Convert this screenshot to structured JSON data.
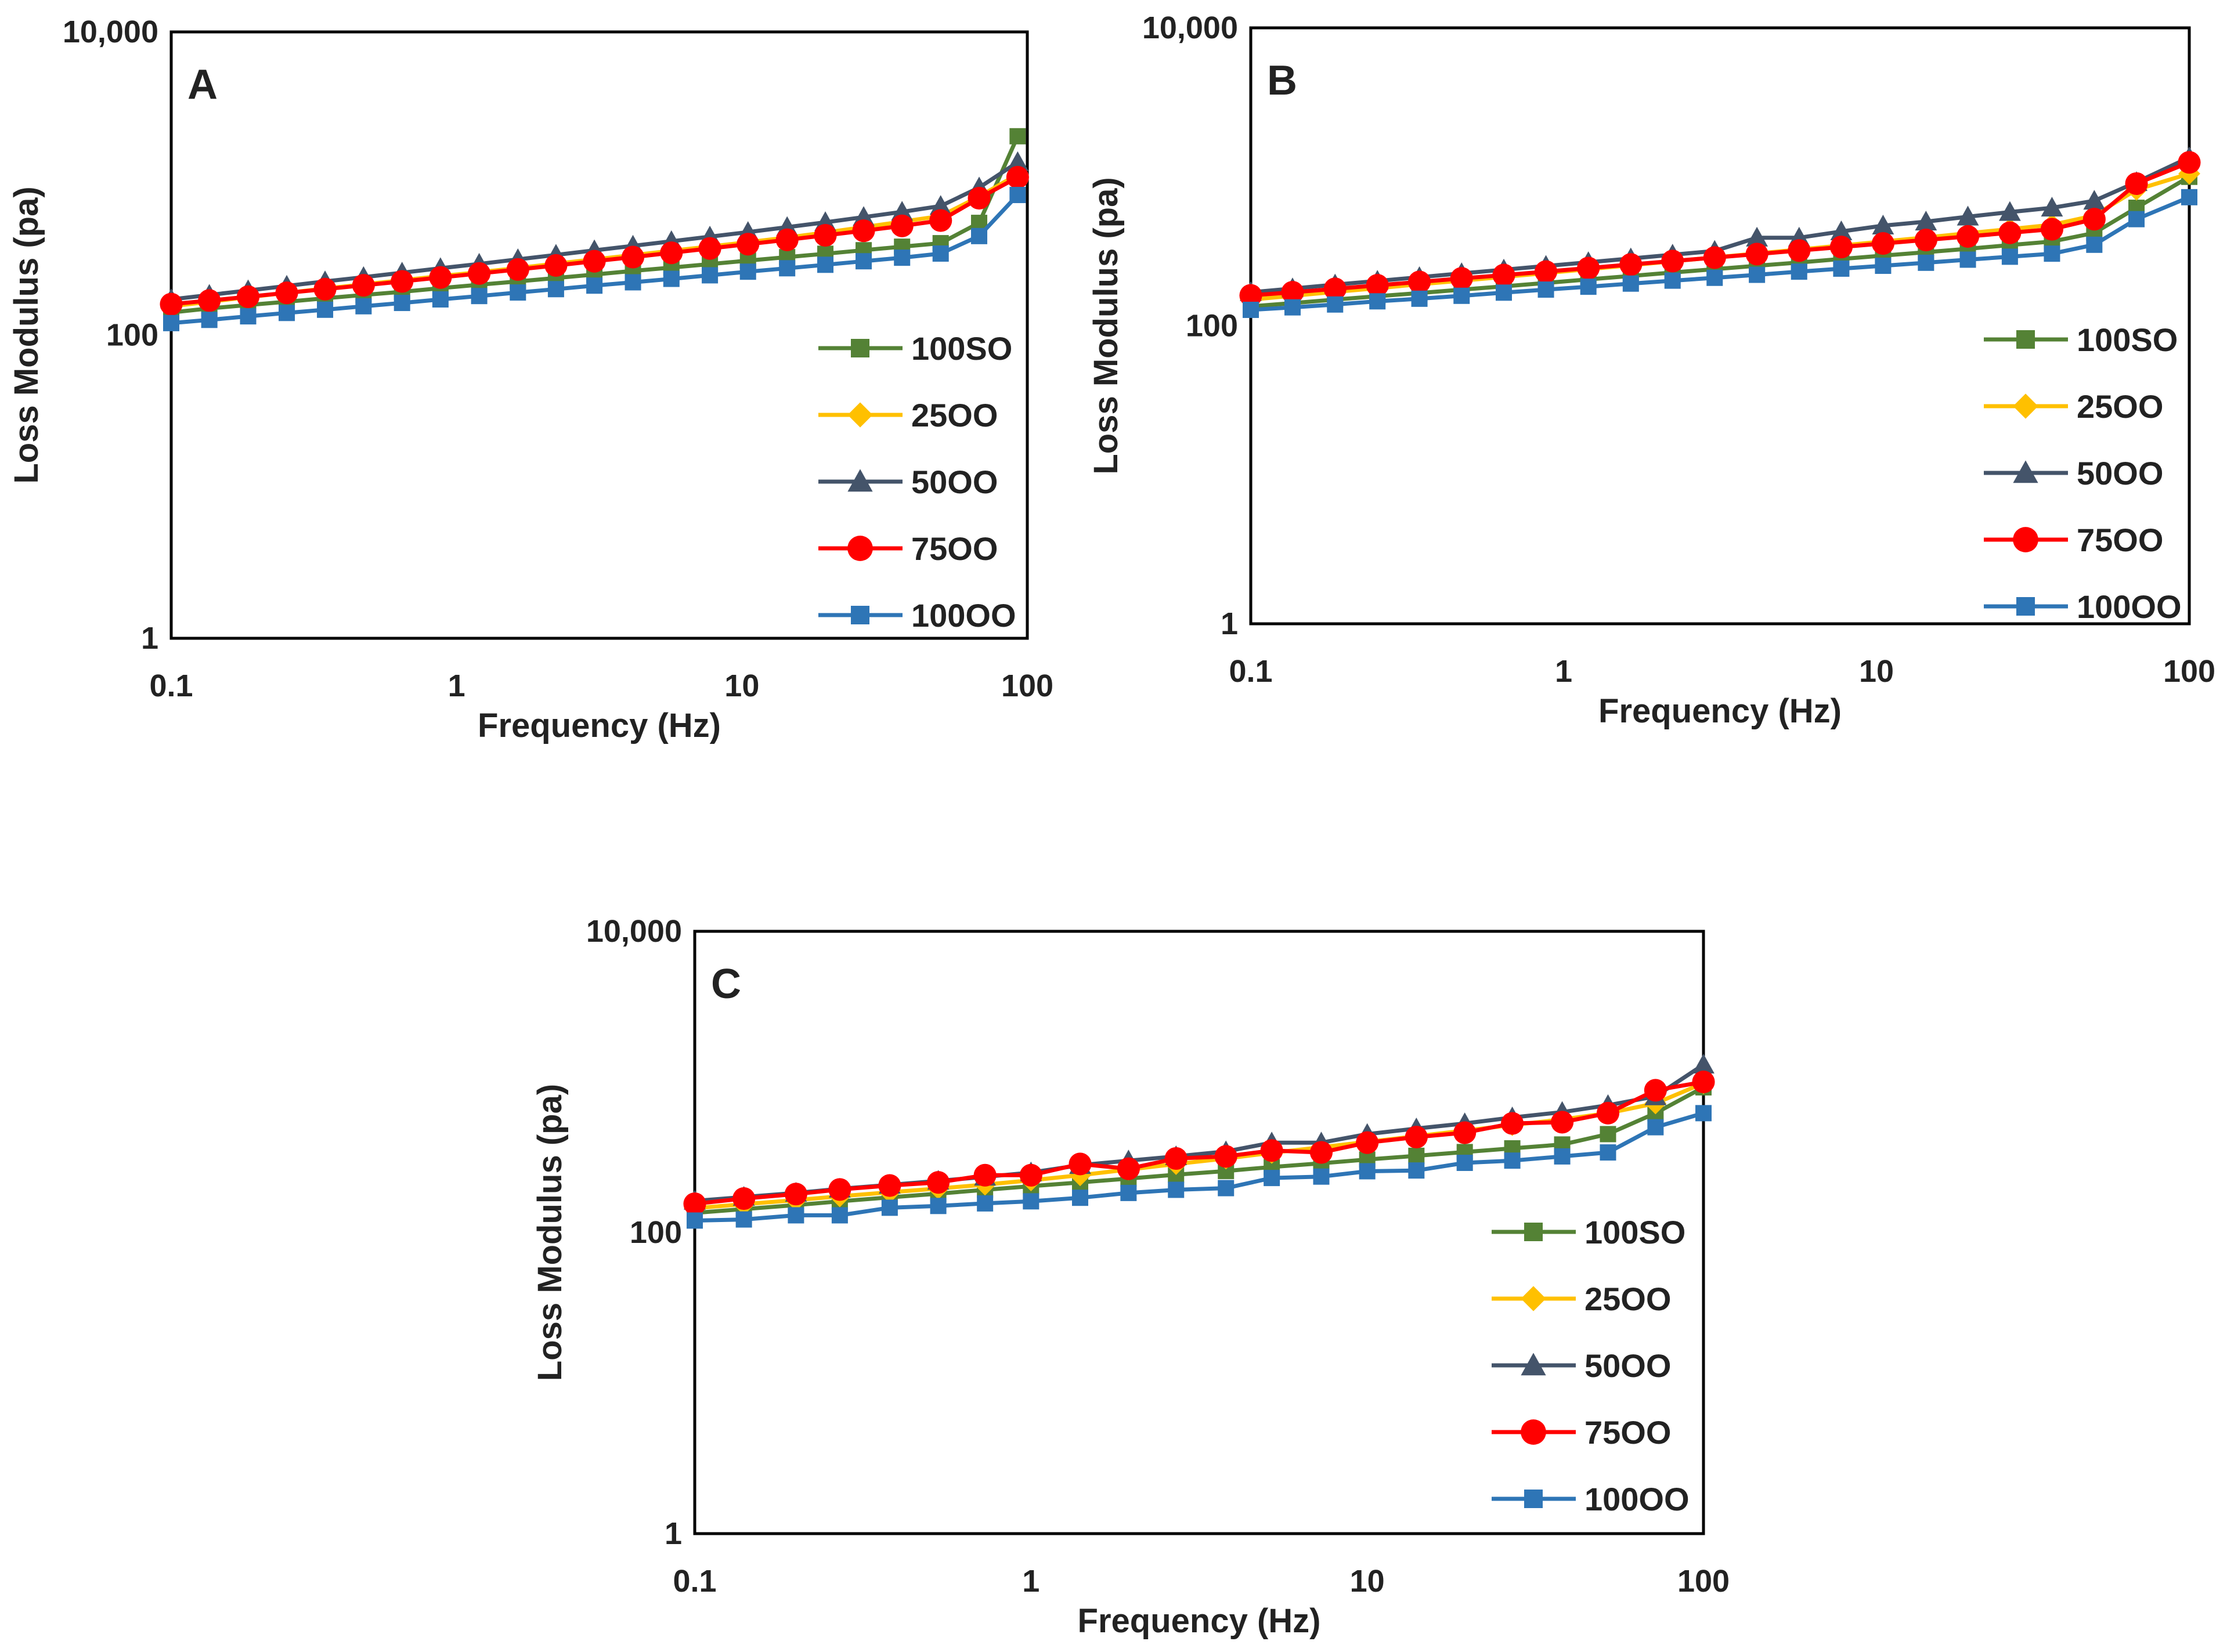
{
  "chart_data": [
    {
      "type": "line",
      "panel_label": "A",
      "title": "",
      "xlabel": "Frequency (Hz)",
      "ylabel": "Loss Modulus (pa)",
      "xscale": "log",
      "yscale": "log",
      "xlim": [
        0.1,
        100
      ],
      "ylim": [
        1,
        10000
      ],
      "x_ticks": [
        {
          "value": 0.1,
          "label": "0.1"
        },
        {
          "value": 1,
          "label": "1"
        },
        {
          "value": 10,
          "label": "10"
        },
        {
          "value": 100,
          "label": "100"
        }
      ],
      "y_ticks": [
        {
          "value": 1,
          "label": "1"
        },
        {
          "value": 100,
          "label": "100"
        },
        {
          "value": 10000,
          "label": "10,000"
        }
      ],
      "legend_position": "bottom-right",
      "x": [
        0.1,
        0.136,
        0.186,
        0.254,
        0.346,
        0.472,
        0.644,
        0.878,
        1.2,
        1.64,
        2.23,
        3.04,
        4.15,
        5.66,
        7.72,
        10.5,
        14.4,
        19.6,
        26.7,
        36.4,
        49.7,
        67.8,
        92.5
      ],
      "series": [
        {
          "name": "100SO",
          "color": "#548235",
          "marker": "square",
          "values": [
            141,
            150,
            158,
            166,
            175,
            184,
            193,
            204,
            215,
            226,
            238,
            251,
            265,
            279,
            294,
            310,
            327,
            344,
            363,
            383,
            404,
            550,
            2050
          ]
        },
        {
          "name": "25OO",
          "color": "#FFC000",
          "marker": "diamond",
          "values": [
            155,
            166,
            178,
            190,
            203,
            216,
            230,
            245,
            260,
            277,
            296,
            316,
            337,
            360,
            384,
            410,
            440,
            475,
            515,
            560,
            610,
            820,
            1150
          ]
        },
        {
          "name": "50OO",
          "color": "#44546A",
          "marker": "triangle",
          "values": [
            172,
            184,
            197,
            211,
            226,
            241,
            258,
            276,
            295,
            316,
            338,
            362,
            388,
            416,
            446,
            478,
            515,
            555,
            600,
            650,
            710,
            940,
            1380
          ]
        },
        {
          "name": "75OO",
          "color": "#FF0000",
          "marker": "circle",
          "values": [
            160,
            169,
            179,
            190,
            201,
            213,
            226,
            240,
            255,
            271,
            288,
            307,
            327,
            349,
            373,
            398,
            425,
            455,
            488,
            525,
            570,
            800,
            1100
          ]
        },
        {
          "name": "100OO",
          "color": "#2E75B6",
          "marker": "square",
          "values": [
            120,
            126,
            133,
            140,
            147,
            155,
            163,
            172,
            181,
            191,
            201,
            212,
            223,
            235,
            248,
            262,
            276,
            291,
            307,
            324,
            345,
            450,
            840
          ]
        }
      ]
    },
    {
      "type": "line",
      "panel_label": "B",
      "title": "",
      "xlabel": "Frequency (Hz)",
      "ylabel": "Loss Modulus (pa)",
      "xscale": "log",
      "yscale": "log",
      "xlim": [
        0.1,
        100
      ],
      "ylim": [
        1,
        10000
      ],
      "x_ticks": [
        {
          "value": 0.1,
          "label": "0.1"
        },
        {
          "value": 1,
          "label": "1"
        },
        {
          "value": 10,
          "label": "10"
        },
        {
          "value": 100,
          "label": "100"
        }
      ],
      "y_ticks": [
        {
          "value": 1,
          "label": "1"
        },
        {
          "value": 100,
          "label": "100"
        },
        {
          "value": 10000,
          "label": "10,000"
        }
      ],
      "legend_position": "bottom-right",
      "x": [
        0.1,
        0.136,
        0.186,
        0.254,
        0.346,
        0.472,
        0.644,
        0.878,
        1.2,
        1.64,
        2.23,
        3.04,
        4.15,
        5.66,
        7.72,
        10.5,
        14.4,
        19.6,
        26.7,
        36.4,
        49.7,
        67.8,
        100
      ],
      "series": [
        {
          "name": "100SO",
          "color": "#548235",
          "marker": "square",
          "values": [
            135,
            142,
            150,
            158,
            166,
            175,
            184,
            194,
            205,
            216,
            228,
            240,
            253,
            266,
            281,
            296,
            312,
            329,
            348,
            368,
            420,
            620,
            1000
          ]
        },
        {
          "name": "25OO",
          "color": "#FFC000",
          "marker": "diamond",
          "values": [
            150,
            159,
            169,
            179,
            190,
            201,
            213,
            226,
            240,
            255,
            271,
            288,
            306,
            325,
            346,
            368,
            392,
            418,
            446,
            476,
            550,
            820,
            1050
          ]
        },
        {
          "name": "50OO",
          "color": "#44546A",
          "marker": "triangle",
          "values": [
            168,
            178,
            189,
            200,
            212,
            225,
            238,
            252,
            267,
            283,
            300,
            318,
            390,
            390,
            430,
            470,
            500,
            540,
            580,
            620,
            690,
            920,
            1350
          ]
        },
        {
          "name": "75OO",
          "color": "#FF0000",
          "marker": "circle",
          "values": [
            160,
            168,
            177,
            187,
            197,
            208,
            219,
            231,
            244,
            258,
            272,
            287,
            303,
            320,
            338,
            357,
            377,
            398,
            421,
            445,
            520,
            900,
            1250
          ]
        },
        {
          "name": "100OO",
          "color": "#2E75B6",
          "marker": "square",
          "values": [
            128,
            133,
            139,
            146,
            152,
            159,
            167,
            175,
            183,
            192,
            201,
            210,
            220,
            231,
            242,
            253,
            265,
            278,
            291,
            305,
            350,
            520,
            730
          ]
        }
      ]
    },
    {
      "type": "line",
      "panel_label": "C",
      "title": "",
      "xlabel": "Frequency (Hz)",
      "ylabel": "Loss Modulus (pa)",
      "xscale": "log",
      "yscale": "log",
      "xlim": [
        0.1,
        100
      ],
      "ylim": [
        1,
        10000
      ],
      "x_ticks": [
        {
          "value": 0.1,
          "label": "0.1"
        },
        {
          "value": 1,
          "label": "1"
        },
        {
          "value": 10,
          "label": "10"
        },
        {
          "value": 100,
          "label": "100"
        }
      ],
      "y_ticks": [
        {
          "value": 1,
          "label": "1"
        },
        {
          "value": 100,
          "label": "100"
        },
        {
          "value": 10000,
          "label": "10,000"
        }
      ],
      "legend_position": "bottom-right",
      "x": [
        0.1,
        0.14,
        0.2,
        0.27,
        0.38,
        0.53,
        0.73,
        1.0,
        1.4,
        1.95,
        2.7,
        3.8,
        5.2,
        7.3,
        10.0,
        14.0,
        19.5,
        27.0,
        38.0,
        52.0,
        72.0,
        100
      ],
      "series": [
        {
          "name": "100SO",
          "color": "#548235",
          "marker": "square",
          "values": [
            135,
            143,
            152,
            161,
            171,
            181,
            192,
            203,
            215,
            228,
            242,
            256,
            272,
            288,
            305,
            323,
            342,
            362,
            384,
            450,
            620,
            920
          ]
        },
        {
          "name": "25OO",
          "color": "#FFC000",
          "marker": "diamond",
          "values": [
            145,
            154,
            164,
            174,
            185,
            196,
            208,
            222,
            240,
            262,
            285,
            310,
            338,
            368,
            400,
            436,
            475,
            517,
            563,
            620,
            720,
            980
          ]
        },
        {
          "name": "50OO",
          "color": "#44546A",
          "marker": "triangle",
          "values": [
            162,
            172,
            183,
            195,
            207,
            220,
            234,
            250,
            280,
            300,
            320,
            345,
            395,
            395,
            450,
            490,
            530,
            580,
            630,
            700,
            800,
            1300
          ]
        },
        {
          "name": "75OO",
          "color": "#FF0000",
          "marker": "circle",
          "values": [
            155,
            168,
            180,
            193,
            205,
            215,
            240,
            240,
            285,
            265,
            310,
            320,
            350,
            340,
            395,
            430,
            460,
            530,
            540,
            620,
            880,
            1000
          ]
        },
        {
          "name": "100OO",
          "color": "#2E75B6",
          "marker": "square",
          "values": [
            120,
            122,
            130,
            130,
            146,
            150,
            156,
            161,
            170,
            183,
            192,
            197,
            230,
            235,
            255,
            258,
            290,
            300,
            320,
            340,
            500,
            620
          ]
        }
      ]
    }
  ]
}
